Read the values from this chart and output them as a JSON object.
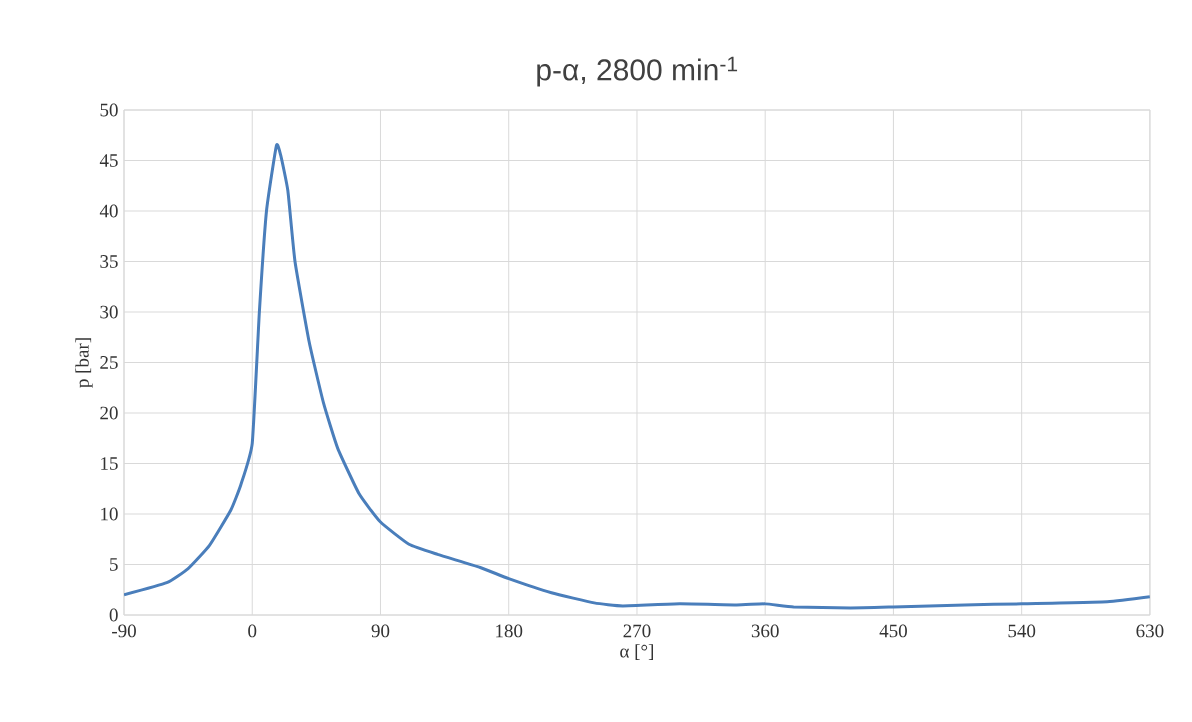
{
  "chart_data": {
    "type": "line",
    "title": "p-α, 2800 min$^{-1}$",
    "xlabel": "α [°]",
    "ylabel": "p [bar]",
    "xlim": [
      -90,
      630
    ],
    "xticks": [
      -90,
      0,
      90,
      180,
      270,
      360,
      450,
      540,
      630
    ],
    "ylim": [
      0,
      50
    ],
    "yticks": [
      0,
      5,
      10,
      15,
      20,
      25,
      30,
      35,
      40,
      45,
      50
    ],
    "grid": true,
    "marker": "none",
    "line_style": "solid",
    "series": [
      {
        "color": "#4a7ebb",
        "x": [
          -90,
          -60,
          -45,
          -30,
          -15,
          -8,
          0,
          5,
          10,
          17,
          20,
          25,
          30,
          40,
          50,
          60,
          75,
          90,
          110,
          130,
          160,
          180,
          210,
          240,
          260,
          300,
          340,
          360,
          380,
          420,
          450,
          500,
          540,
          600,
          630
        ],
        "values": [
          2.0,
          3.2,
          4.6,
          6.9,
          10.4,
          12.9,
          17,
          30,
          40,
          46.5,
          45.5,
          42,
          35,
          27,
          21,
          16.5,
          12,
          9.2,
          7,
          6,
          4.7,
          3.6,
          2.2,
          1.2,
          0.9,
          1.1,
          1.0,
          1.1,
          0.8,
          0.7,
          0.8,
          1.0,
          1.1,
          1.3,
          1.8
        ]
      }
    ]
  }
}
